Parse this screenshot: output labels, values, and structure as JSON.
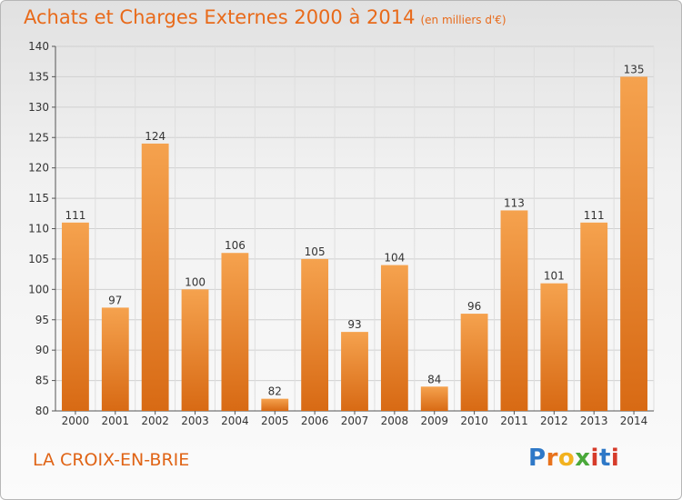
{
  "title": "Achats et Charges Externes 2000 à 2014",
  "subtitle": "(en milliers d'€)",
  "place": "LA CROIX-EN-BRIE",
  "logo": {
    "letters": [
      "P",
      "r",
      "o",
      "x",
      "i",
      "t",
      "i"
    ],
    "colors": [
      "#2e78c7",
      "#e8721c",
      "#f2b21f",
      "#4aa83a",
      "#d63b2a",
      "#2e78c7",
      "#d63b2a"
    ]
  },
  "colors": {
    "bar_top": "#f5a24e",
    "bar_bottom": "#d86a14",
    "title": "#e86a1a"
  },
  "chart_data": {
    "type": "bar",
    "categories": [
      "2000",
      "2001",
      "2002",
      "2003",
      "2004",
      "2005",
      "2006",
      "2007",
      "2008",
      "2009",
      "2010",
      "2011",
      "2012",
      "2013",
      "2014"
    ],
    "values": [
      111,
      97,
      124,
      100,
      106,
      82,
      105,
      93,
      104,
      84,
      96,
      113,
      101,
      111,
      135
    ],
    "ylim": [
      80,
      140
    ],
    "yticks": [
      80,
      85,
      90,
      95,
      100,
      105,
      110,
      115,
      120,
      125,
      130,
      135,
      140
    ],
    "grid": true
  }
}
